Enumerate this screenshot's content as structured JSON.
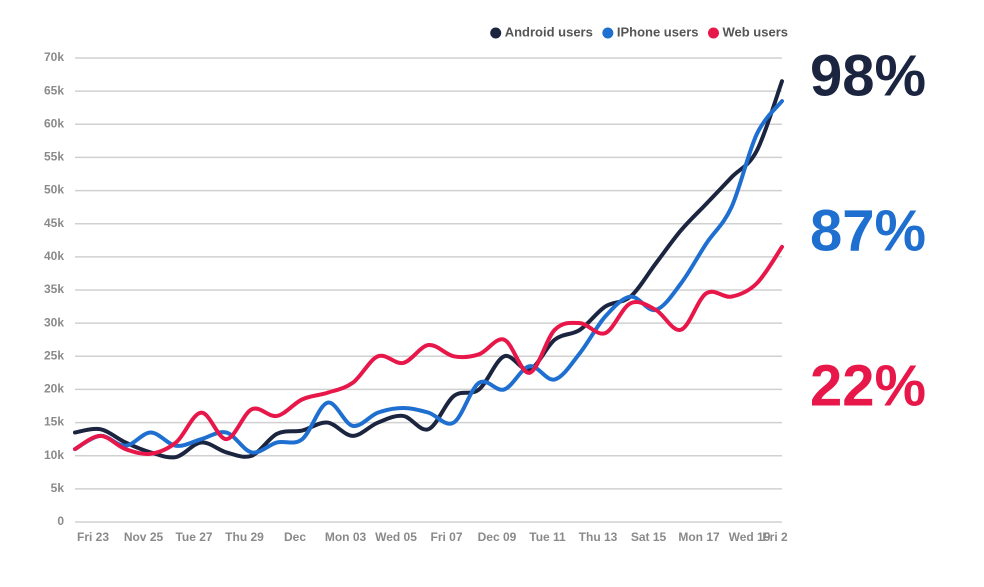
{
  "chart_data": {
    "type": "line",
    "categories": [
      "Fri 23",
      null,
      "Nov 25",
      null,
      "Tue 27",
      null,
      "Thu 29",
      null,
      "Dec",
      null,
      "Mon 03",
      null,
      "Wed 05",
      null,
      "Fri 07",
      null,
      "Dec 09",
      null,
      "Tue 11",
      null,
      "Thu 13",
      null,
      "Sat 15",
      null,
      "Mon 17",
      null,
      "Wed 19",
      null,
      "Fri 2"
    ],
    "series": [
      {
        "name": "Android users",
        "color": "#1b2540",
        "values": [
          13.5,
          14,
          12,
          10.5,
          9.8,
          12,
          10.5,
          10,
          13.3,
          13.8,
          15,
          13,
          15,
          16,
          14,
          19,
          20,
          25,
          23,
          27.5,
          29,
          32.5,
          34,
          39,
          44,
          48,
          52,
          56,
          66.5
        ]
      },
      {
        "name": "IPhone users",
        "color": "#1f6fd0",
        "values": [
          11,
          13,
          11.5,
          13.5,
          11.5,
          12.5,
          13.5,
          10.5,
          12,
          12.5,
          18,
          14.5,
          16.5,
          17.2,
          16.5,
          15,
          21,
          20,
          23.5,
          21.5,
          25.5,
          31,
          34,
          32,
          36,
          42,
          47.5,
          58.5,
          63.5
        ]
      },
      {
        "name": "Web users",
        "color": "#e8174a",
        "values": [
          11,
          13,
          11,
          10.3,
          12,
          16.5,
          12.5,
          17,
          16,
          18.5,
          19.5,
          21,
          25,
          24,
          26.7,
          25,
          25.3,
          27.5,
          22.5,
          29,
          30,
          28.5,
          33,
          32,
          29,
          34.5,
          34,
          36,
          41.5
        ]
      }
    ],
    "annotations": [
      "98%",
      "87%",
      "22%"
    ],
    "ylim": [
      0,
      70
    ],
    "yticks": [
      0,
      {
        "value": 5,
        "label": "5k"
      },
      {
        "value": 10,
        "label": "10k"
      },
      {
        "value": 15,
        "label": "15k"
      },
      {
        "value": 20,
        "label": "20k"
      },
      {
        "value": 25,
        "label": "25k"
      },
      {
        "value": 30,
        "label": "30k"
      },
      {
        "value": 35,
        "label": "35k"
      },
      {
        "value": 40,
        "label": "40k"
      },
      {
        "value": 45,
        "label": "45k"
      },
      {
        "value": 50,
        "label": "50k"
      },
      {
        "value": 55,
        "label": "55k"
      },
      {
        "value": 60,
        "label": "60k"
      },
      {
        "value": 65,
        "label": "65k"
      },
      {
        "value": 70,
        "label": "70k"
      }
    ],
    "grid": true,
    "legend": "top-right"
  }
}
